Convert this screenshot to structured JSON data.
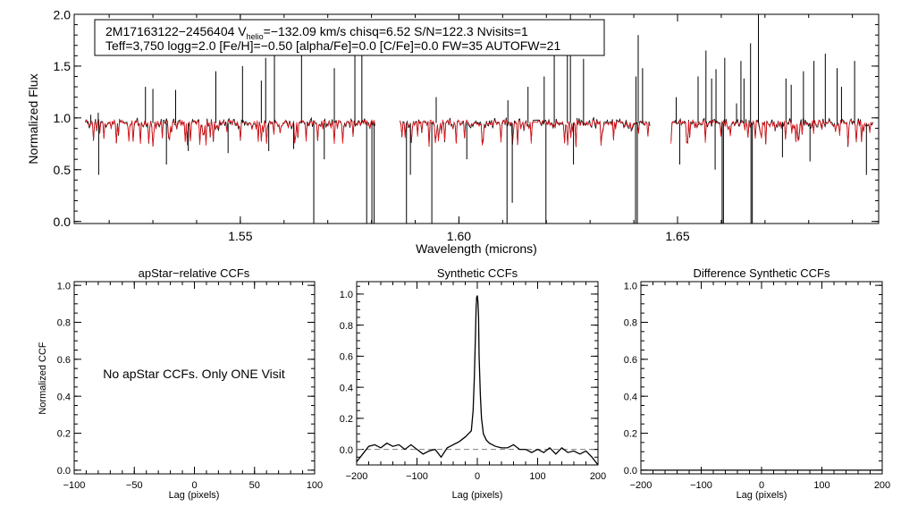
{
  "colors": {
    "observed": "#000000",
    "model": "#e8141b",
    "dashed": "#808080",
    "axis": "#000000"
  },
  "chart_data": [
    {
      "type": "line",
      "id": "spectrum",
      "xlabel": "Wavelength (microns)",
      "ylabel": "Normalized Flux",
      "xlim": [
        1.512,
        1.696
      ],
      "ylim": [
        -0.02,
        2.0
      ],
      "xticks": [
        1.55,
        1.6,
        1.65
      ],
      "xtick_labels": [
        "1.55",
        "1.60",
        "1.65"
      ],
      "yticks": [
        0.0,
        0.5,
        1.0,
        1.5,
        2.0
      ],
      "ytick_labels": [
        "0.0",
        "0.5",
        "1.0",
        "1.5",
        "2.0"
      ],
      "annotation": {
        "line1_a": "2M17163122−2456404  V",
        "line1_sub": "helio",
        "line1_b": "=−132.09 km/s  chisq=6.52  S/N=122.3  Nvisits=1",
        "line2": "Teff=3,750 logg=2.0 [Fe/H]=−0.50 [alpha/Fe]=0.0 [C/Fe]=0.0 FW=35 AUTOFW=21"
      },
      "segments": [
        {
          "start": 1.5145,
          "end": 1.5808
        },
        {
          "start": 1.5865,
          "end": 1.6437
        },
        {
          "start": 1.6485,
          "end": 1.6947
        }
      ],
      "continuum": 0.95,
      "emission_spikes": [
        {
          "x": 1.5158,
          "y": 1.03
        },
        {
          "x": 1.5175,
          "y": 1.05
        },
        {
          "x": 1.5283,
          "y": 1.3
        },
        {
          "x": 1.53,
          "y": 1.28
        },
        {
          "x": 1.5352,
          "y": 1.27
        },
        {
          "x": 1.5444,
          "y": 1.45
        },
        {
          "x": 1.5505,
          "y": 1.5
        },
        {
          "x": 1.5548,
          "y": 1.36
        },
        {
          "x": 1.5558,
          "y": 1.58
        },
        {
          "x": 1.5578,
          "y": 1.68
        },
        {
          "x": 1.564,
          "y": 1.88
        },
        {
          "x": 1.5715,
          "y": 1.48
        },
        {
          "x": 1.5762,
          "y": 1.82
        },
        {
          "x": 1.5778,
          "y": 1.73
        },
        {
          "x": 1.5948,
          "y": 1.2
        },
        {
          "x": 1.6112,
          "y": 1.17
        },
        {
          "x": 1.6158,
          "y": 1.3
        },
        {
          "x": 1.6195,
          "y": 1.4
        },
        {
          "x": 1.6218,
          "y": 1.86
        },
        {
          "x": 1.6248,
          "y": 1.66
        },
        {
          "x": 1.6255,
          "y": 2.0
        },
        {
          "x": 1.6285,
          "y": 1.57
        },
        {
          "x": 1.6405,
          "y": 1.4
        },
        {
          "x": 1.641,
          "y": 1.8
        },
        {
          "x": 1.642,
          "y": 1.48
        },
        {
          "x": 1.6497,
          "y": 1.2
        },
        {
          "x": 1.6547,
          "y": 1.4
        },
        {
          "x": 1.6565,
          "y": 1.65
        },
        {
          "x": 1.6578,
          "y": 1.38
        },
        {
          "x": 1.6588,
          "y": 1.47
        },
        {
          "x": 1.6608,
          "y": 1.58
        },
        {
          "x": 1.6635,
          "y": 1.14
        },
        {
          "x": 1.6645,
          "y": 1.55
        },
        {
          "x": 1.6652,
          "y": 1.38
        },
        {
          "x": 1.6667,
          "y": 1.72
        },
        {
          "x": 1.6685,
          "y": 2.0
        },
        {
          "x": 1.6748,
          "y": 1.38
        },
        {
          "x": 1.676,
          "y": 1.32
        },
        {
          "x": 1.6788,
          "y": 1.45
        },
        {
          "x": 1.6812,
          "y": 1.55
        },
        {
          "x": 1.6838,
          "y": 1.62
        },
        {
          "x": 1.6865,
          "y": 1.48
        },
        {
          "x": 1.6875,
          "y": 1.3
        },
        {
          "x": 1.6905,
          "y": 1.55
        }
      ],
      "absorption_spikes": [
        {
          "x": 1.5176,
          "y": 0.45
        },
        {
          "x": 1.5331,
          "y": 0.55
        },
        {
          "x": 1.5381,
          "y": 0.68
        },
        {
          "x": 1.5472,
          "y": 0.66
        },
        {
          "x": 1.5565,
          "y": 0.68
        },
        {
          "x": 1.5622,
          "y": 0.7
        },
        {
          "x": 1.5668,
          "y": -0.02
        },
        {
          "x": 1.5692,
          "y": 0.6
        },
        {
          "x": 1.5789,
          "y": -0.02
        },
        {
          "x": 1.5801,
          "y": -0.02
        },
        {
          "x": 1.5806,
          "y": -0.02
        },
        {
          "x": 1.588,
          "y": -0.02
        },
        {
          "x": 1.5938,
          "y": -0.02
        },
        {
          "x": 1.5889,
          "y": 0.45
        },
        {
          "x": 1.6018,
          "y": 0.6
        },
        {
          "x": 1.611,
          "y": -0.02
        },
        {
          "x": 1.6122,
          "y": 0.18
        },
        {
          "x": 1.6199,
          "y": -0.02
        },
        {
          "x": 1.6262,
          "y": 0.55
        },
        {
          "x": 1.6404,
          "y": -0.02
        },
        {
          "x": 1.6408,
          "y": -0.02
        },
        {
          "x": 1.6505,
          "y": 0.55
        },
        {
          "x": 1.6586,
          "y": 0.5
        },
        {
          "x": 1.6602,
          "y": -0.02
        },
        {
          "x": 1.6605,
          "y": -0.02
        },
        {
          "x": 1.6668,
          "y": -0.02
        },
        {
          "x": 1.6671,
          "y": -0.02
        },
        {
          "x": 1.674,
          "y": 0.62
        },
        {
          "x": 1.6803,
          "y": 0.58
        },
        {
          "x": 1.6932,
          "y": 0.45
        }
      ]
    },
    {
      "type": "line",
      "id": "apstar-ccf",
      "title": "apStar−relative CCFs",
      "xlabel": "Lag (pixels)",
      "ylabel": "Normalized CCF",
      "xlim": [
        -100,
        100
      ],
      "ylim": [
        -0.02,
        1.02
      ],
      "xticks": [
        -100,
        -50,
        0,
        50,
        100
      ],
      "xtick_labels": [
        "−100",
        "−50",
        "0",
        "50",
        "100"
      ],
      "yticks": [
        0.0,
        0.2,
        0.4,
        0.6,
        0.8,
        1.0
      ],
      "ytick_labels": [
        "0.0",
        "0.2",
        "0.4",
        "0.6",
        "0.8",
        "1.0"
      ],
      "message": "No apStar CCFs.  Only ONE Visit"
    },
    {
      "type": "line",
      "id": "synthetic-ccf",
      "title": "Synthetic CCFs",
      "xlabel": "Lag (pixels)",
      "xlim": [
        -200,
        200
      ],
      "ylim": [
        -0.1,
        1.08
      ],
      "xticks": [
        -200,
        -100,
        0,
        100,
        200
      ],
      "xtick_labels": [
        "−200",
        "−100",
        "0",
        "100",
        "200"
      ],
      "yticks": [
        0.0,
        0.2,
        0.4,
        0.6,
        0.8,
        1.0
      ],
      "ytick_labels": [
        "0.0",
        "0.2",
        "0.4",
        "0.6",
        "0.8",
        "1.0"
      ],
      "reference_line": 0.0,
      "x": [
        -200,
        -190,
        -180,
        -170,
        -160,
        -150,
        -140,
        -130,
        -120,
        -110,
        -100,
        -90,
        -80,
        -70,
        -60,
        -50,
        -40,
        -30,
        -20,
        -15,
        -10,
        -7,
        -5,
        -3,
        -2,
        -1,
        0,
        1,
        2,
        3,
        5,
        7,
        10,
        15,
        20,
        30,
        40,
        50,
        60,
        70,
        80,
        90,
        100,
        110,
        120,
        130,
        140,
        150,
        160,
        170,
        180,
        190,
        200
      ],
      "y": [
        -0.08,
        -0.03,
        0.02,
        0.03,
        0.01,
        0.04,
        0.02,
        0.03,
        0.0,
        0.03,
        0.0,
        -0.03,
        -0.01,
        0.0,
        -0.05,
        0.01,
        0.03,
        0.05,
        0.08,
        0.1,
        0.12,
        0.25,
        0.45,
        0.75,
        0.9,
        0.98,
        0.99,
        0.95,
        0.85,
        0.6,
        0.35,
        0.2,
        0.1,
        0.06,
        0.04,
        0.02,
        0.01,
        0.01,
        0.03,
        0.0,
        0.0,
        -0.02,
        0.0,
        -0.02,
        0.01,
        -0.03,
        0.01,
        -0.02,
        -0.01,
        -0.03,
        -0.01,
        -0.05,
        -0.1
      ]
    },
    {
      "type": "line",
      "id": "difference-ccf",
      "title": "Difference Synthetic CCFs",
      "xlabel": "Lag (pixels)",
      "xlim": [
        -200,
        200
      ],
      "ylim": [
        -0.02,
        1.02
      ],
      "xticks": [
        -200,
        -100,
        0,
        100,
        200
      ],
      "xtick_labels": [
        "−200",
        "−100",
        "0",
        "100",
        "200"
      ],
      "yticks": [
        0.0,
        0.2,
        0.4,
        0.6,
        0.8,
        1.0
      ],
      "ytick_labels": [
        "0.0",
        "0.2",
        "0.4",
        "0.6",
        "0.8",
        "1.0"
      ],
      "x": [
        -200,
        200
      ],
      "y": [
        0.0,
        0.0
      ]
    }
  ]
}
